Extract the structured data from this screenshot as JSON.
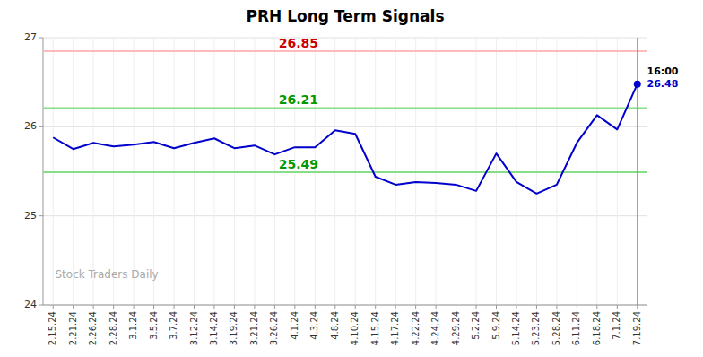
{
  "chart_data": {
    "type": "line",
    "title": "PRH Long Term Signals",
    "categories": [
      "2.15.24",
      "2.21.24",
      "2.26.24",
      "2.28.24",
      "3.1.24",
      "3.5.24",
      "3.7.24",
      "3.12.24",
      "3.14.24",
      "3.19.24",
      "3.21.24",
      "3.26.24",
      "4.1.24",
      "4.3.24",
      "4.8.24",
      "4.10.24",
      "4.15.24",
      "4.17.24",
      "4.22.24",
      "4.24.24",
      "4.29.24",
      "5.2.24",
      "5.9.24",
      "5.14.24",
      "5.23.24",
      "5.28.24",
      "6.11.24",
      "6.18.24",
      "7.1.24",
      "7.19.24"
    ],
    "series": [
      {
        "name": "PRH",
        "color": "#0000cc",
        "values": [
          25.88,
          25.75,
          25.82,
          25.78,
          25.8,
          25.83,
          25.76,
          25.82,
          25.87,
          25.76,
          25.79,
          25.69,
          25.77,
          25.77,
          25.96,
          25.92,
          25.44,
          25.35,
          25.38,
          25.37,
          25.35,
          25.28,
          25.7,
          25.38,
          25.25,
          25.35,
          25.82,
          26.13,
          25.97,
          26.48
        ]
      }
    ],
    "ylim": [
      24,
      27
    ],
    "yticks": [
      24,
      25,
      26,
      27
    ],
    "grid": true,
    "hlines": [
      {
        "value": 26.85,
        "label": "26.85",
        "color": "#ffbbbb",
        "label_color": "#cc0000"
      },
      {
        "value": 26.21,
        "label": "26.21",
        "color": "#88dd88",
        "label_color": "#009900"
      },
      {
        "value": 25.49,
        "label": "25.49",
        "color": "#88dd88",
        "label_color": "#009900"
      }
    ],
    "annotations": [
      {
        "text": "16:00",
        "color": "#000000"
      },
      {
        "text": "26.48",
        "color": "#0000cc"
      }
    ],
    "watermark": "Stock Traders Daily"
  }
}
